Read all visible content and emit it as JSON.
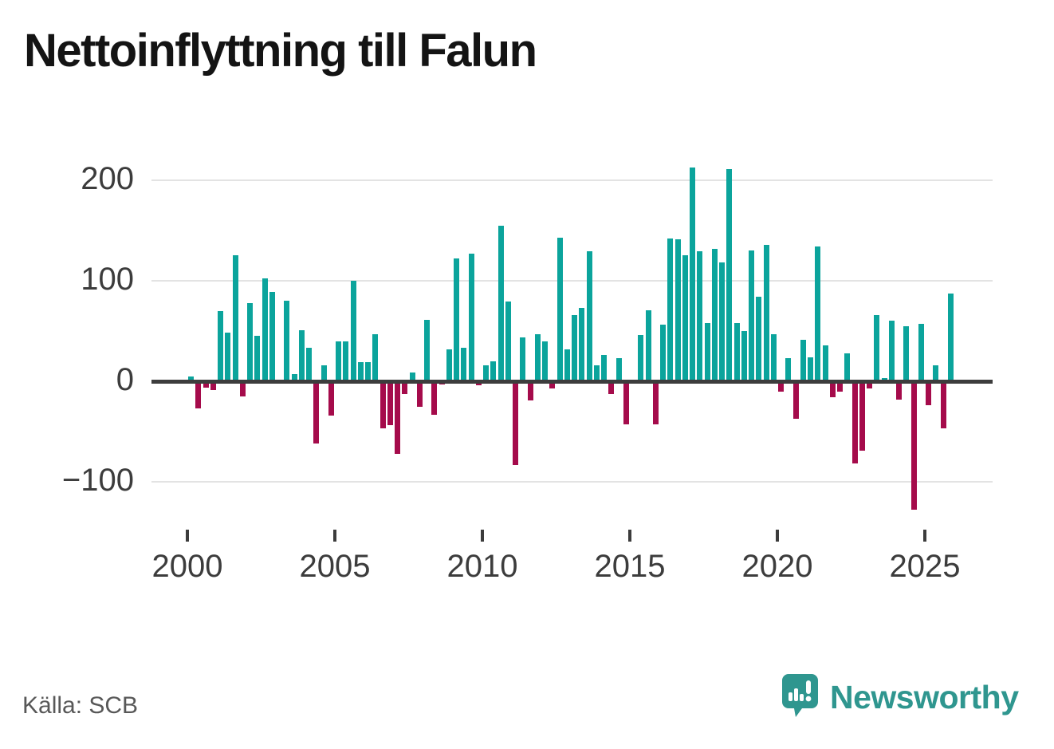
{
  "title": "Nettoinflyttning till Falun",
  "source": "Källa: SCB",
  "brand": {
    "name": "Newsworthy",
    "color": "#2f968f"
  },
  "chart_data": {
    "type": "bar",
    "title": "Nettoinflyttning till Falun",
    "subtitle": "",
    "xlabel": "",
    "ylabel": "",
    "period": "quarterly",
    "start_period": "2000 Q1",
    "end_period": "2025 Q4",
    "x_tick_labels": [
      "2000",
      "2005",
      "2010",
      "2015",
      "2020",
      "2025"
    ],
    "y_tick_labels": [
      "200",
      "100",
      "0",
      "−100"
    ],
    "y_ticks": [
      200,
      100,
      0,
      -100
    ],
    "ylim": [
      -150,
      235
    ],
    "grid": true,
    "legend": false,
    "colors": {
      "positive": "#0ba49c",
      "negative": "#a50b4b"
    },
    "values": [
      5,
      -27,
      -6,
      -9,
      70,
      48,
      125,
      -15,
      78,
      45,
      102,
      89,
      0,
      80,
      7,
      51,
      33,
      -62,
      16,
      -34,
      40,
      40,
      100,
      19,
      19,
      47,
      -47,
      -44,
      -72,
      -13,
      9,
      -25,
      61,
      -33,
      -3,
      32,
      122,
      33,
      127,
      -4,
      16,
      20,
      155,
      79,
      -83,
      44,
      -19,
      47,
      40,
      -7,
      143,
      32,
      66,
      73,
      129,
      16,
      26,
      -13,
      23,
      -43,
      0,
      46,
      71,
      -43,
      56,
      142,
      141,
      125,
      213,
      129,
      58,
      132,
      118,
      211,
      58,
      50,
      130,
      84,
      136,
      47,
      -10,
      23,
      -37,
      41,
      24,
      134,
      36,
      -16,
      -10,
      28,
      -82,
      -69,
      -7,
      66,
      3,
      60,
      -18,
      55,
      -128,
      57,
      -24,
      16,
      -47,
      87
    ]
  }
}
